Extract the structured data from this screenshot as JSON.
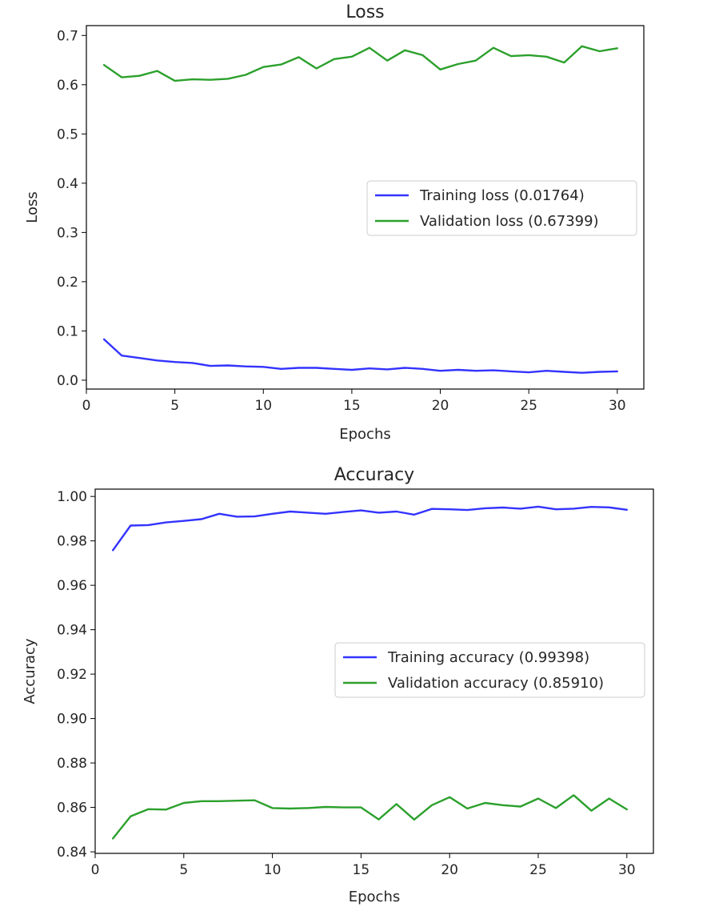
{
  "chart_data": [
    {
      "type": "line",
      "title": "Loss",
      "xlabel": "Epochs",
      "ylabel": "Loss",
      "xlim": [
        0,
        31.5
      ],
      "ylim": [
        -0.018,
        0.72
      ],
      "xticks": [
        0,
        5,
        10,
        15,
        20,
        25,
        30
      ],
      "xtick_labels": [
        "0",
        "5",
        "10",
        "15",
        "20",
        "25",
        "30"
      ],
      "yticks": [
        0.0,
        0.1,
        0.2,
        0.3,
        0.4,
        0.5,
        0.6,
        0.7
      ],
      "ytick_labels": [
        "0.0",
        "0.1",
        "0.2",
        "0.3",
        "0.4",
        "0.5",
        "0.6",
        "0.7"
      ],
      "grid": false,
      "legend_position": "center-right",
      "x": [
        1,
        2,
        3,
        4,
        5,
        6,
        7,
        8,
        9,
        10,
        11,
        12,
        13,
        14,
        15,
        16,
        17,
        18,
        19,
        20,
        21,
        22,
        23,
        24,
        25,
        26,
        27,
        28,
        29,
        30
      ],
      "series": [
        {
          "name": "Training loss (0.01764)",
          "color": "#3333ff",
          "values": [
            0.083,
            0.05,
            0.045,
            0.04,
            0.037,
            0.035,
            0.029,
            0.03,
            0.028,
            0.027,
            0.023,
            0.025,
            0.025,
            0.023,
            0.021,
            0.024,
            0.022,
            0.025,
            0.023,
            0.019,
            0.021,
            0.019,
            0.02,
            0.018,
            0.016,
            0.019,
            0.017,
            0.015,
            0.017,
            0.018
          ]
        },
        {
          "name": "Validation loss (0.67399)",
          "color": "#2ca02c",
          "values": [
            0.64,
            0.615,
            0.618,
            0.628,
            0.608,
            0.611,
            0.61,
            0.612,
            0.62,
            0.636,
            0.641,
            0.656,
            0.633,
            0.652,
            0.657,
            0.675,
            0.649,
            0.67,
            0.66,
            0.631,
            0.642,
            0.649,
            0.675,
            0.658,
            0.66,
            0.657,
            0.645,
            0.678,
            0.668,
            0.674
          ]
        }
      ]
    },
    {
      "type": "line",
      "title": "Accuracy",
      "xlabel": "Epochs",
      "ylabel": "Accuracy",
      "xlim": [
        0,
        31.5
      ],
      "ylim": [
        0.8393,
        1.0033
      ],
      "xticks": [
        0,
        5,
        10,
        15,
        20,
        25,
        30
      ],
      "xtick_labels": [
        "0",
        "5",
        "10",
        "15",
        "20",
        "25",
        "30"
      ],
      "yticks": [
        0.84,
        0.86,
        0.88,
        0.9,
        0.92,
        0.94,
        0.96,
        0.98,
        1.0
      ],
      "ytick_labels": [
        "0.84",
        "0.86",
        "0.88",
        "0.90",
        "0.92",
        "0.94",
        "0.96",
        "0.98",
        "1.00"
      ],
      "grid": false,
      "legend_position": "center-right",
      "x": [
        1,
        2,
        3,
        4,
        5,
        6,
        7,
        8,
        9,
        10,
        11,
        12,
        13,
        14,
        15,
        16,
        17,
        18,
        19,
        20,
        21,
        22,
        23,
        24,
        25,
        26,
        27,
        28,
        29,
        30
      ],
      "series": [
        {
          "name": "Training accuracy (0.99398)",
          "color": "#3333ff",
          "values": [
            0.9758,
            0.9869,
            0.9871,
            0.9883,
            0.989,
            0.9898,
            0.9922,
            0.9909,
            0.991,
            0.9922,
            0.9932,
            0.9927,
            0.9922,
            0.993,
            0.9937,
            0.9927,
            0.9932,
            0.9918,
            0.9944,
            0.9942,
            0.9939,
            0.9947,
            0.995,
            0.9945,
            0.9954,
            0.9942,
            0.9945,
            0.9953,
            0.9951,
            0.994
          ]
        },
        {
          "name": "Validation accuracy (0.85910)",
          "color": "#2ca02c",
          "values": [
            0.846,
            0.856,
            0.8592,
            0.859,
            0.862,
            0.8628,
            0.8628,
            0.863,
            0.8632,
            0.8597,
            0.8595,
            0.8597,
            0.8602,
            0.86,
            0.86,
            0.8546,
            0.8615,
            0.8545,
            0.861,
            0.8646,
            0.8595,
            0.862,
            0.861,
            0.8604,
            0.864,
            0.8597,
            0.8655,
            0.8585,
            0.864,
            0.8591
          ]
        }
      ]
    }
  ]
}
